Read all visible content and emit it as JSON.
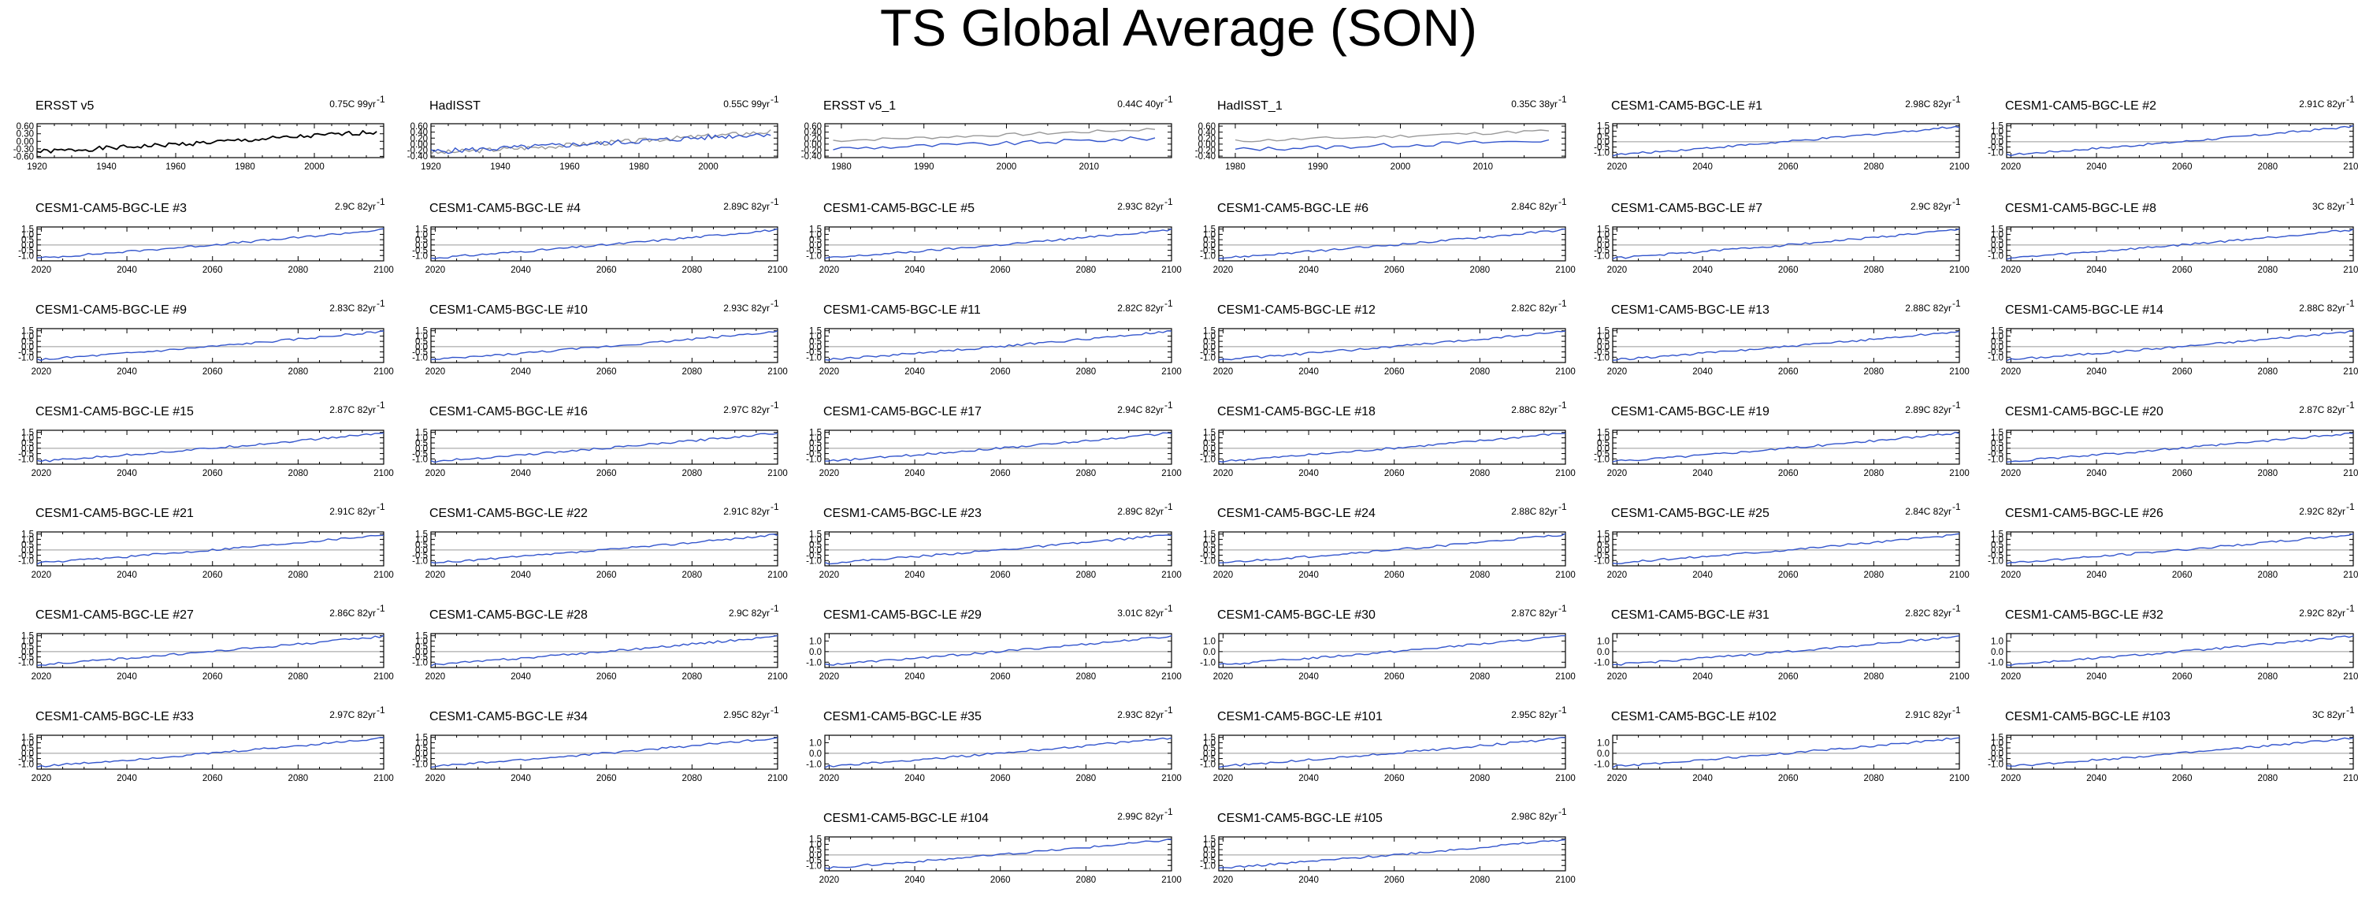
{
  "page": {
    "title": "TS Global Average (SON)"
  },
  "chart_data": [
    {
      "type": "line",
      "title": "ERSST v5",
      "trend": "0.75C 99yr",
      "trend_exp": "-1",
      "xlim": [
        1920,
        2020
      ],
      "xticks": [
        1920,
        1940,
        1960,
        1980,
        2000
      ],
      "ylim": [
        -0.65,
        0.7
      ],
      "yticks": [
        -0.6,
        -0.3,
        0.0,
        0.3,
        0.6
      ],
      "ytick_labels": [
        "-0.60",
        "-0.30",
        "0.00",
        "0.30",
        "0.60"
      ],
      "zero_line": false,
      "series": [
        {
          "color": "#000000",
          "start": 1920,
          "end": 2018,
          "y0": -0.42,
          "y1": 0.38,
          "seed": 1,
          "noise": 0.09
        }
      ]
    },
    {
      "type": "line",
      "title": "HadISST",
      "trend": "0.55C 99yr",
      "trend_exp": "-1",
      "xlim": [
        1920,
        2020
      ],
      "xticks": [
        1920,
        1940,
        1960,
        1980,
        2000
      ],
      "ylim": [
        -0.45,
        0.68
      ],
      "yticks": [
        -0.4,
        -0.2,
        0.0,
        0.2,
        0.4,
        0.6
      ],
      "ytick_labels": [
        "-0.40",
        "-0.20",
        "0.00",
        "0.20",
        "0.40",
        "0.60"
      ],
      "zero_line": false,
      "series": [
        {
          "color": "#999999",
          "start": 1920,
          "end": 2018,
          "y0": -0.3,
          "y1": 0.42,
          "seed": 3,
          "noise": 0.08
        },
        {
          "color": "#3355cc",
          "start": 1920,
          "end": 2018,
          "y0": -0.25,
          "y1": 0.35,
          "seed": 5,
          "noise": 0.09
        }
      ]
    },
    {
      "type": "line",
      "title": "ERSST v5_1",
      "trend": "0.44C 40yr",
      "trend_exp": "-1",
      "xlim": [
        1978,
        2020
      ],
      "xticks": [
        1980,
        1990,
        2000,
        2010
      ],
      "ylim": [
        -0.45,
        0.68
      ],
      "yticks": [
        -0.4,
        -0.2,
        0.0,
        0.2,
        0.4,
        0.6
      ],
      "ytick_labels": [
        "-0.40",
        "-0.20",
        "0.00",
        "0.20",
        "0.40",
        "0.60"
      ],
      "zero_line": false,
      "series": [
        {
          "color": "#999999",
          "start": 1979,
          "end": 2018,
          "y0": 0.12,
          "y1": 0.5,
          "seed": 7,
          "noise": 0.05
        },
        {
          "color": "#3355cc",
          "start": 1979,
          "end": 2018,
          "y0": -0.15,
          "y1": 0.2,
          "seed": 9,
          "noise": 0.07
        }
      ]
    },
    {
      "type": "line",
      "title": "HadISST_1",
      "trend": "0.35C 38yr",
      "trend_exp": "-1",
      "xlim": [
        1978,
        2020
      ],
      "xticks": [
        1980,
        1990,
        2000,
        2010
      ],
      "ylim": [
        -0.45,
        0.68
      ],
      "yticks": [
        -0.4,
        -0.2,
        0.0,
        0.2,
        0.4,
        0.6
      ],
      "ytick_labels": [
        "-0.40",
        "-0.20",
        "0.00",
        "0.20",
        "0.40",
        "0.60"
      ],
      "zero_line": false,
      "series": [
        {
          "color": "#999999",
          "start": 1980,
          "end": 2018,
          "y0": 0.1,
          "y1": 0.45,
          "seed": 11,
          "noise": 0.05
        },
        {
          "color": "#3355cc",
          "start": 1980,
          "end": 2018,
          "y0": -0.18,
          "y1": 0.12,
          "seed": 13,
          "noise": 0.07
        }
      ]
    },
    {
      "type": "line",
      "title": "CESM1-CAM5-BGC-LE #1",
      "trend": "2.98C 82yr",
      "trend_exp": "-1",
      "member": 1
    },
    {
      "type": "line",
      "title": "CESM1-CAM5-BGC-LE #2",
      "trend": "2.91C 82yr",
      "trend_exp": "-1",
      "member": 2
    },
    {
      "type": "line",
      "title": "CESM1-CAM5-BGC-LE #3",
      "trend": "2.9C 82yr",
      "trend_exp": "-1",
      "member": 3
    },
    {
      "type": "line",
      "title": "CESM1-CAM5-BGC-LE #4",
      "trend": "2.89C 82yr",
      "trend_exp": "-1",
      "member": 4
    },
    {
      "type": "line",
      "title": "CESM1-CAM5-BGC-LE #5",
      "trend": "2.93C 82yr",
      "trend_exp": "-1",
      "member": 5
    },
    {
      "type": "line",
      "title": "CESM1-CAM5-BGC-LE #6",
      "trend": "2.84C 82yr",
      "trend_exp": "-1",
      "member": 6
    },
    {
      "type": "line",
      "title": "CESM1-CAM5-BGC-LE #7",
      "trend": "2.9C 82yr",
      "trend_exp": "-1",
      "member": 7
    },
    {
      "type": "line",
      "title": "CESM1-CAM5-BGC-LE #8",
      "trend": "3C 82yr",
      "trend_exp": "-1",
      "member": 8
    },
    {
      "type": "line",
      "title": "CESM1-CAM5-BGC-LE #9",
      "trend": "2.83C 82yr",
      "trend_exp": "-1",
      "member": 9
    },
    {
      "type": "line",
      "title": "CESM1-CAM5-BGC-LE #10",
      "trend": "2.93C 82yr",
      "trend_exp": "-1",
      "member": 10
    },
    {
      "type": "line",
      "title": "CESM1-CAM5-BGC-LE #11",
      "trend": "2.82C 82yr",
      "trend_exp": "-1",
      "member": 11
    },
    {
      "type": "line",
      "title": "CESM1-CAM5-BGC-LE #12",
      "trend": "2.82C 82yr",
      "trend_exp": "-1",
      "member": 12
    },
    {
      "type": "line",
      "title": "CESM1-CAM5-BGC-LE #13",
      "trend": "2.88C 82yr",
      "trend_exp": "-1",
      "member": 13
    },
    {
      "type": "line",
      "title": "CESM1-CAM5-BGC-LE #14",
      "trend": "2.88C 82yr",
      "trend_exp": "-1",
      "member": 14
    },
    {
      "type": "line",
      "title": "CESM1-CAM5-BGC-LE #15",
      "trend": "2.87C 82yr",
      "trend_exp": "-1",
      "member": 15
    },
    {
      "type": "line",
      "title": "CESM1-CAM5-BGC-LE #16",
      "trend": "2.97C 82yr",
      "trend_exp": "-1",
      "member": 16
    },
    {
      "type": "line",
      "title": "CESM1-CAM5-BGC-LE #17",
      "trend": "2.94C 82yr",
      "trend_exp": "-1",
      "member": 17
    },
    {
      "type": "line",
      "title": "CESM1-CAM5-BGC-LE #18",
      "trend": "2.88C 82yr",
      "trend_exp": "-1",
      "member": 18
    },
    {
      "type": "line",
      "title": "CESM1-CAM5-BGC-LE #19",
      "trend": "2.89C 82yr",
      "trend_exp": "-1",
      "member": 19
    },
    {
      "type": "line",
      "title": "CESM1-CAM5-BGC-LE #20",
      "trend": "2.87C 82yr",
      "trend_exp": "-1",
      "member": 20
    },
    {
      "type": "line",
      "title": "CESM1-CAM5-BGC-LE #21",
      "trend": "2.91C 82yr",
      "trend_exp": "-1",
      "member": 21
    },
    {
      "type": "line",
      "title": "CESM1-CAM5-BGC-LE #22",
      "trend": "2.91C 82yr",
      "trend_exp": "-1",
      "member": 22
    },
    {
      "type": "line",
      "title": "CESM1-CAM5-BGC-LE #23",
      "trend": "2.89C 82yr",
      "trend_exp": "-1",
      "member": 23
    },
    {
      "type": "line",
      "title": "CESM1-CAM5-BGC-LE #24",
      "trend": "2.88C 82yr",
      "trend_exp": "-1",
      "member": 24
    },
    {
      "type": "line",
      "title": "CESM1-CAM5-BGC-LE #25",
      "trend": "2.84C 82yr",
      "trend_exp": "-1",
      "member": 25
    },
    {
      "type": "line",
      "title": "CESM1-CAM5-BGC-LE #26",
      "trend": "2.92C 82yr",
      "trend_exp": "-1",
      "member": 26
    },
    {
      "type": "line",
      "title": "CESM1-CAM5-BGC-LE #27",
      "trend": "2.86C 82yr",
      "trend_exp": "-1",
      "member": 27
    },
    {
      "type": "line",
      "title": "CESM1-CAM5-BGC-LE #28",
      "trend": "2.9C 82yr",
      "trend_exp": "-1",
      "member": 28
    },
    {
      "type": "line",
      "title": "CESM1-CAM5-BGC-LE #29",
      "trend": "3.01C 82yr",
      "trend_exp": "-1",
      "member": 29,
      "ylim": [
        -1.5,
        1.7
      ],
      "yticks": [
        -1.0,
        0.0,
        1.0
      ],
      "ytick_labels": [
        "-1.0",
        "0.0",
        "1.0"
      ]
    },
    {
      "type": "line",
      "title": "CESM1-CAM5-BGC-LE #30",
      "trend": "2.87C 82yr",
      "trend_exp": "-1",
      "member": 30,
      "ylim": [
        -1.5,
        1.7
      ],
      "yticks": [
        -1.0,
        0.0,
        1.0
      ],
      "ytick_labels": [
        "-1.0",
        "0.0",
        "1.0"
      ]
    },
    {
      "type": "line",
      "title": "CESM1-CAM5-BGC-LE #31",
      "trend": "2.82C 82yr",
      "trend_exp": "-1",
      "member": 31,
      "ylim": [
        -1.5,
        1.7
      ],
      "yticks": [
        -1.0,
        0.0,
        1.0
      ],
      "ytick_labels": [
        "-1.0",
        "0.0",
        "1.0"
      ]
    },
    {
      "type": "line",
      "title": "CESM1-CAM5-BGC-LE #32",
      "trend": "2.92C 82yr",
      "trend_exp": "-1",
      "member": 32,
      "ylim": [
        -1.5,
        1.7
      ],
      "yticks": [
        -1.0,
        0.0,
        1.0
      ],
      "ytick_labels": [
        "-1.0",
        "0.0",
        "1.0"
      ]
    },
    {
      "type": "line",
      "title": "CESM1-CAM5-BGC-LE #33",
      "trend": "2.97C 82yr",
      "trend_exp": "-1",
      "member": 33
    },
    {
      "type": "line",
      "title": "CESM1-CAM5-BGC-LE #34",
      "trend": "2.95C 82yr",
      "trend_exp": "-1",
      "member": 34,
      "yticks": [
        -1.0,
        -0.5,
        0.0,
        0.5,
        1.0,
        1.5
      ],
      "ytick_labels": [
        "-1.0",
        "-0.5",
        "0.0",
        "0.5",
        "1.0",
        "1.5"
      ]
    },
    {
      "type": "line",
      "title": "CESM1-CAM5-BGC-LE #35",
      "trend": "2.93C 82yr",
      "trend_exp": "-1",
      "member": 35,
      "ylim": [
        -1.5,
        1.7
      ],
      "yticks": [
        -1.0,
        0.0,
        1.0
      ],
      "ytick_labels": [
        "-1.0",
        "0.0",
        "1.0"
      ]
    },
    {
      "type": "line",
      "title": "CESM1-CAM5-BGC-LE #101",
      "trend": "2.95C 82yr",
      "trend_exp": "-1",
      "member": 101
    },
    {
      "type": "line",
      "title": "CESM1-CAM5-BGC-LE #102",
      "trend": "2.91C 82yr",
      "trend_exp": "-1",
      "member": 102,
      "ylim": [
        -1.5,
        1.7
      ],
      "yticks": [
        -1.0,
        0.0,
        1.0
      ],
      "ytick_labels": [
        "-1.0",
        "0.0",
        "1.0"
      ]
    },
    {
      "type": "line",
      "title": "CESM1-CAM5-BGC-LE #103",
      "trend": "3C 82yr",
      "trend_exp": "-1",
      "member": 103
    },
    {
      "type": "line",
      "title": "CESM1-CAM5-BGC-LE #104",
      "trend": "2.99C 82yr",
      "trend_exp": "-1",
      "member": 104
    },
    {
      "type": "line",
      "title": "CESM1-CAM5-BGC-LE #105",
      "trend": "2.98C 82yr",
      "trend_exp": "-1",
      "member": 105
    }
  ],
  "ensemble_defaults": {
    "xlim": [
      2019,
      2100
    ],
    "xticks": [
      2020,
      2040,
      2060,
      2080,
      2100
    ],
    "ylim": [
      -1.5,
      1.7
    ],
    "yticks": [
      -1.0,
      -0.5,
      0.0,
      0.5,
      1.0,
      1.5
    ],
    "ytick_labels": [
      "-1.0",
      "-0.5",
      "0.0",
      "0.5",
      "1.0",
      "1.5"
    ],
    "zero_line": true,
    "line_color": "#3355cc",
    "start": 2019,
    "end": 2100,
    "y0": -1.25,
    "y1": 1.45,
    "noise": 0.1
  }
}
